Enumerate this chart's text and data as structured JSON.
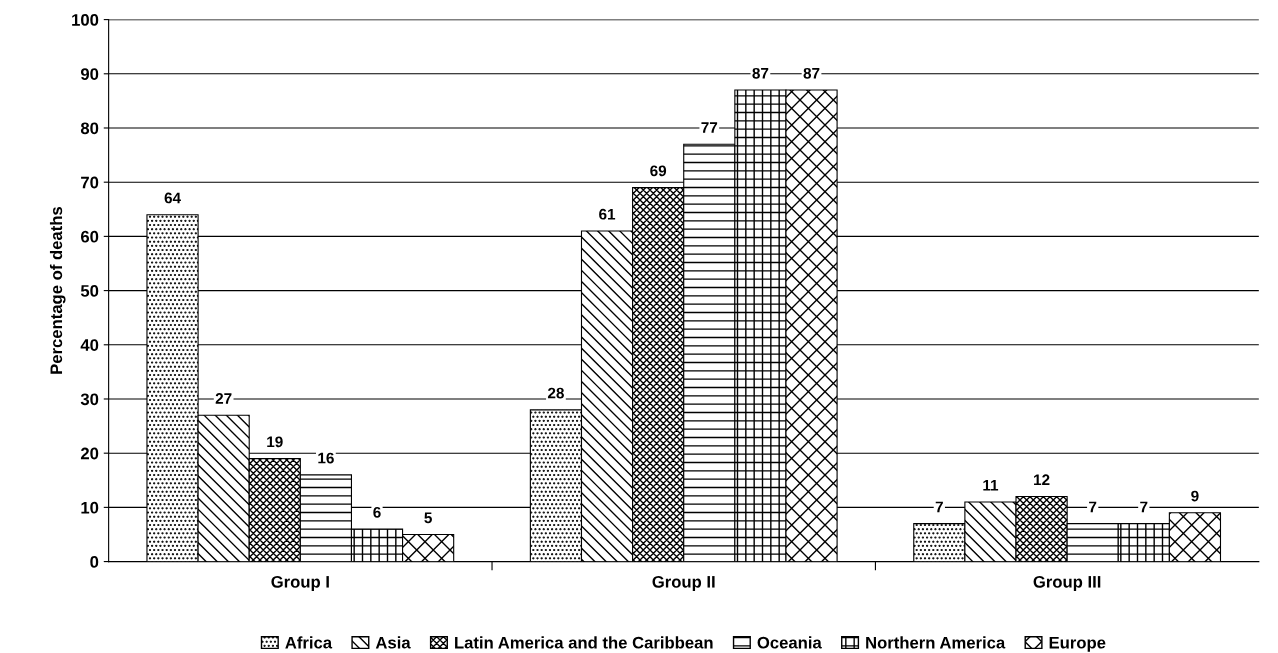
{
  "chart_data": {
    "type": "bar",
    "ylabel": "Percentage of deaths",
    "categories": [
      "Group I",
      "Group II",
      "Group III"
    ],
    "series": [
      {
        "name": "Africa",
        "color": "#000000",
        "values": [
          64,
          28,
          7
        ]
      },
      {
        "name": "Asia",
        "color": "#000000",
        "values": [
          27,
          61,
          11
        ]
      },
      {
        "name": "Latin America and the Caribbean",
        "color": "#000000",
        "values": [
          19,
          69,
          12
        ]
      },
      {
        "name": "Oceania",
        "color": "#000000",
        "values": [
          16,
          77,
          7
        ]
      },
      {
        "name": "Northern America",
        "color": "#000000",
        "values": [
          6,
          87,
          7
        ]
      },
      {
        "name": "Europe",
        "color": "#000000",
        "values": [
          5,
          87,
          9
        ]
      }
    ],
    "ylim": [
      0,
      100
    ],
    "yticks": [
      0,
      10,
      20,
      30,
      40,
      50,
      60,
      70,
      80,
      90,
      100
    ],
    "grid": "y",
    "legend": "bottom",
    "data_labels": true
  }
}
